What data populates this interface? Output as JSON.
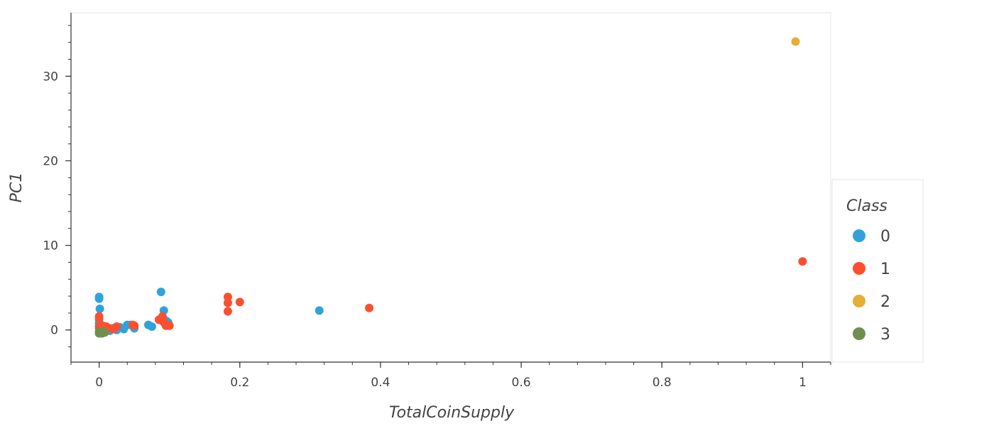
{
  "chart_data": {
    "type": "scatter",
    "xlabel": "TotalCoinSupply",
    "ylabel": "PC1",
    "xlim": [
      -0.04,
      1.04
    ],
    "ylim": [
      -3.8,
      37.5
    ],
    "x_ticks": [
      0,
      0.2,
      0.4,
      0.6,
      0.8,
      1
    ],
    "x_tick_labels": [
      "0",
      "0.2",
      "0.4",
      "0.6",
      "0.8",
      "1"
    ],
    "y_ticks": [
      0,
      10,
      20,
      30
    ],
    "y_tick_labels": [
      "0",
      "10",
      "20",
      "30"
    ],
    "grid": false,
    "legend_title": "Class",
    "legend_position": "right",
    "series": [
      {
        "name": "0",
        "color": "#30a2da",
        "points": [
          [
            0.0,
            3.9
          ],
          [
            0.0,
            3.7
          ],
          [
            0.001,
            2.5
          ],
          [
            0.0,
            1.2
          ],
          [
            0.0,
            0.8
          ],
          [
            0.0,
            0.5
          ],
          [
            0.0,
            0.2
          ],
          [
            0.001,
            -0.1
          ],
          [
            0.003,
            0.3
          ],
          [
            0.005,
            0.0
          ],
          [
            0.008,
            -0.2
          ],
          [
            0.012,
            0.1
          ],
          [
            0.015,
            -0.1
          ],
          [
            0.02,
            0.2
          ],
          [
            0.025,
            0.0
          ],
          [
            0.03,
            0.3
          ],
          [
            0.035,
            0.1
          ],
          [
            0.04,
            0.6
          ],
          [
            0.045,
            0.6
          ],
          [
            0.05,
            0.2
          ],
          [
            0.07,
            0.6
          ],
          [
            0.075,
            0.4
          ],
          [
            0.088,
            4.5
          ],
          [
            0.092,
            2.3
          ],
          [
            0.095,
            1.1
          ],
          [
            0.098,
            0.9
          ],
          [
            0.313,
            2.3
          ]
        ]
      },
      {
        "name": "1",
        "color": "#fc4f30",
        "points": [
          [
            0.0,
            1.6
          ],
          [
            0.0,
            1.4
          ],
          [
            0.0,
            0.4
          ],
          [
            0.002,
            0.3
          ],
          [
            0.005,
            0.5
          ],
          [
            0.01,
            0.4
          ],
          [
            0.015,
            0.2
          ],
          [
            0.02,
            0.1
          ],
          [
            0.025,
            0.4
          ],
          [
            0.048,
            0.6
          ],
          [
            0.05,
            0.5
          ],
          [
            0.085,
            1.2
          ],
          [
            0.09,
            1.6
          ],
          [
            0.092,
            0.9
          ],
          [
            0.095,
            0.5
          ],
          [
            0.1,
            0.5
          ],
          [
            0.183,
            3.9
          ],
          [
            0.183,
            3.2
          ],
          [
            0.183,
            2.2
          ],
          [
            0.2,
            3.3
          ],
          [
            0.384,
            2.6
          ],
          [
            1.0,
            8.1
          ]
        ]
      },
      {
        "name": "2",
        "color": "#e5ae38",
        "points": [
          [
            0.99,
            34.1
          ]
        ]
      },
      {
        "name": "3",
        "color": "#6d904f",
        "points": [
          [
            0.0,
            -0.4
          ],
          [
            0.0,
            -0.2
          ],
          [
            0.002,
            -0.3
          ],
          [
            0.004,
            -0.4
          ],
          [
            0.006,
            -0.2
          ],
          [
            0.008,
            -0.3
          ]
        ]
      }
    ]
  }
}
